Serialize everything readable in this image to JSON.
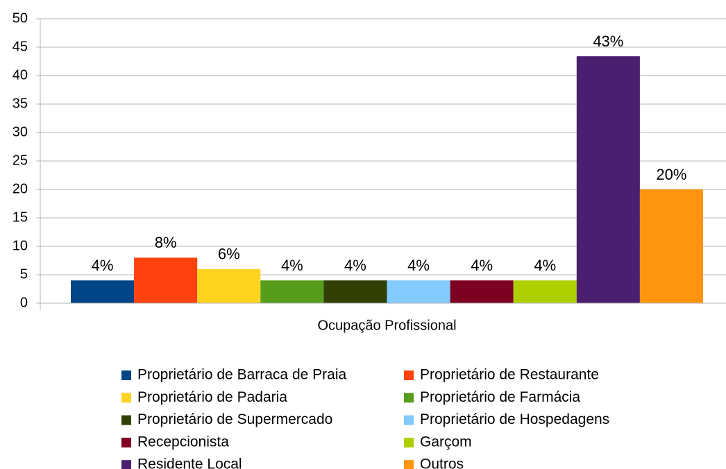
{
  "chart_data": {
    "type": "bar",
    "categories": [
      "Ocupação Profissional"
    ],
    "series": [
      {
        "name": "Proprietário de Barraca de Praia",
        "color": "#004586",
        "values": [
          4
        ],
        "value_labels": [
          "4%"
        ]
      },
      {
        "name": "Proprietário de Restaurante",
        "color": "#ff420e",
        "values": [
          8
        ],
        "value_labels": [
          "8%"
        ]
      },
      {
        "name": "Proprietário de Padaria",
        "color": "#ffd320",
        "values": [
          6
        ],
        "value_labels": [
          "6%"
        ]
      },
      {
        "name": "Proprietário de Farmácia",
        "color": "#579d1c",
        "values": [
          4
        ],
        "value_labels": [
          "4%"
        ]
      },
      {
        "name": "Proprietário de Supermercado",
        "color": "#314004",
        "values": [
          4
        ],
        "value_labels": [
          "4%"
        ]
      },
      {
        "name": "Proprietário de Hospedagens",
        "color": "#83caff",
        "values": [
          4
        ],
        "value_labels": [
          "4%"
        ]
      },
      {
        "name": "Recepcionista",
        "color": "#7e0021",
        "values": [
          4
        ],
        "value_labels": [
          "4%"
        ]
      },
      {
        "name": "Garçom",
        "color": "#aecf00",
        "values": [
          4
        ],
        "value_labels": [
          "4%"
        ]
      },
      {
        "name": "Residente Local",
        "color": "#4b1f6f",
        "values": [
          43.4
        ],
        "value_labels": [
          "43%"
        ]
      },
      {
        "name": "Outros",
        "color": "#ff950e",
        "values": [
          20
        ],
        "value_labels": [
          "20%"
        ]
      }
    ],
    "ylim": [
      0,
      50
    ],
    "yticks": [
      0,
      5,
      10,
      15,
      20,
      25,
      30,
      35,
      40,
      45,
      50
    ],
    "grid": true,
    "legend": "bottom"
  }
}
